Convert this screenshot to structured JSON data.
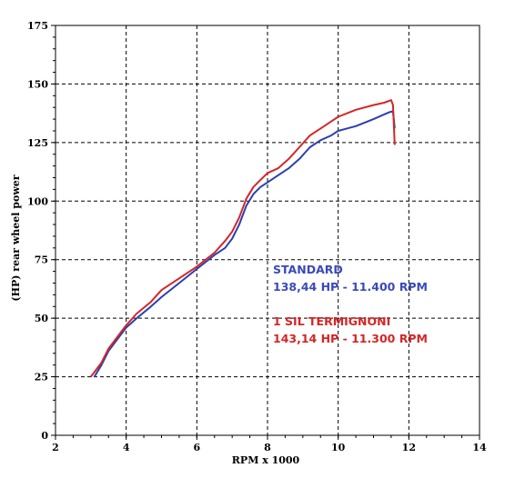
{
  "chart_data": {
    "type": "line",
    "xlabel": "RPM x 1000",
    "ylabel": "(HP) rear wheel power",
    "xlim": [
      2,
      14
    ],
    "ylim": [
      0,
      175
    ],
    "x_ticks": [
      "2",
      "4",
      "6",
      "8",
      "10",
      "12",
      "14"
    ],
    "y_ticks": [
      "0",
      "25",
      "50",
      "75",
      "100",
      "125",
      "150",
      "175"
    ],
    "grid": true,
    "colors": {
      "standard": "#2b3fb0",
      "termignoni": "#d42626",
      "standard_text": "#3a4ab8",
      "termignoni_text": "#d42626"
    },
    "annotations": {
      "standard_name": "STANDARD",
      "standard_value": "138,44 HP - 11.400 RPM",
      "termignoni_name": "1 SIL TERMIGNONI",
      "termignoni_value": "143,14 HP - 11.300 RPM"
    },
    "series": [
      {
        "key": "standard",
        "x": [
          3.1,
          3.3,
          3.5,
          3.8,
          4.0,
          4.3,
          4.7,
          5.0,
          5.5,
          6.0,
          6.5,
          6.8,
          7.0,
          7.2,
          7.4,
          7.6,
          7.8,
          8.0,
          8.3,
          8.6,
          8.9,
          9.2,
          9.5,
          9.8,
          10.0,
          10.5,
          11.0,
          11.3,
          11.45,
          11.55,
          11.6
        ],
        "y": [
          25,
          30,
          36,
          42,
          46,
          50,
          55,
          59,
          65,
          71,
          77,
          80,
          84,
          90,
          98,
          103,
          106,
          108,
          111,
          114,
          118,
          123,
          126,
          128,
          130,
          132,
          135,
          137,
          138,
          138.4,
          131
        ]
      },
      {
        "key": "termignoni",
        "x": [
          3.0,
          3.3,
          3.5,
          3.8,
          4.0,
          4.3,
          4.7,
          5.0,
          5.5,
          6.0,
          6.5,
          6.8,
          7.0,
          7.2,
          7.4,
          7.6,
          7.8,
          8.0,
          8.3,
          8.6,
          8.9,
          9.2,
          9.5,
          9.8,
          10.0,
          10.5,
          11.0,
          11.3,
          11.5,
          11.55,
          11.6
        ],
        "y": [
          25,
          31,
          37,
          43,
          47,
          52,
          57,
          62,
          67,
          72,
          78,
          83,
          87,
          93,
          101,
          106,
          109,
          112,
          114,
          118,
          123,
          128,
          131,
          134,
          136,
          139,
          141,
          142,
          143.1,
          141,
          124
        ]
      }
    ]
  }
}
